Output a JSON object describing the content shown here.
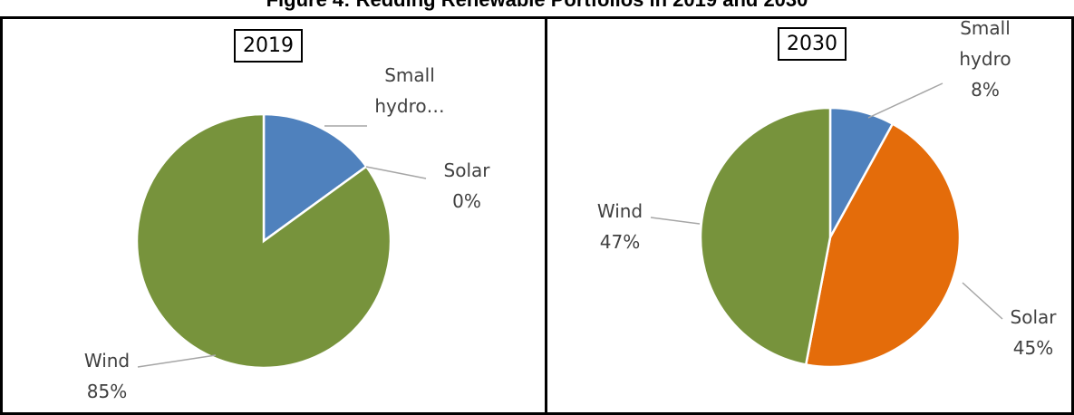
{
  "title": "Figure 4: Redding Renewable Portfolios in 2019 and 2030",
  "chart_data": [
    {
      "type": "pie",
      "title": "2019",
      "categories": [
        "Small hydro…",
        "Solar",
        "Wind"
      ],
      "values": [
        15,
        0,
        85
      ],
      "value_labels": [
        null,
        "0%",
        "85%"
      ],
      "colors": [
        "#4f81bd",
        "#e46c0a",
        "#77933c"
      ]
    },
    {
      "type": "pie",
      "title": "2030",
      "categories": [
        "Small hydro",
        "Solar",
        "Wind"
      ],
      "values": [
        8,
        45,
        47
      ],
      "value_labels": [
        "8%",
        "45%",
        "47%"
      ],
      "colors": [
        "#4f81bd",
        "#e46c0a",
        "#77933c"
      ]
    }
  ]
}
